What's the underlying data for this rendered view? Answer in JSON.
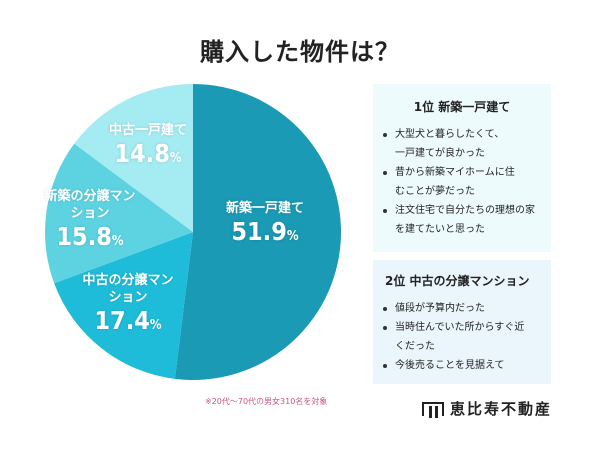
{
  "title": "購入した物件は？",
  "chart_data": {
    "type": "pie",
    "title": "購入した物件は？",
    "categories": [
      "新築一戸建て",
      "中古の分譲マンション",
      "新築の分譲マンション",
      "中古一戸建て"
    ],
    "values": [
      51.9,
      17.4,
      15.8,
      14.8
    ],
    "value_labels": [
      "51.9",
      "17.4",
      "15.8",
      "14.8"
    ],
    "unit": "%",
    "colors": [
      "#1a9ab4",
      "#1fbcd9",
      "#5dd3e2",
      "#a5ebf2"
    ],
    "start": "top",
    "direction": "clockwise"
  },
  "note": "※20代〜70代の男女310名を対象",
  "reasons": [
    {
      "title": "1位 新築一戸建て",
      "items": [
        "大型犬と暮らしたくて、一戸建てが良かった",
        "昔から新築マイホームに住むことが夢だった",
        "注文住宅で自分たちの理想の家を建てたいと思った"
      ]
    },
    {
      "title": "2位 中古の分譲マンション",
      "items": [
        "値段が予算内だった",
        "当時住んでいた所からすぐ近くだった",
        "今後売ることを見据えて"
      ]
    }
  ],
  "logo": "恵比寿不動産"
}
